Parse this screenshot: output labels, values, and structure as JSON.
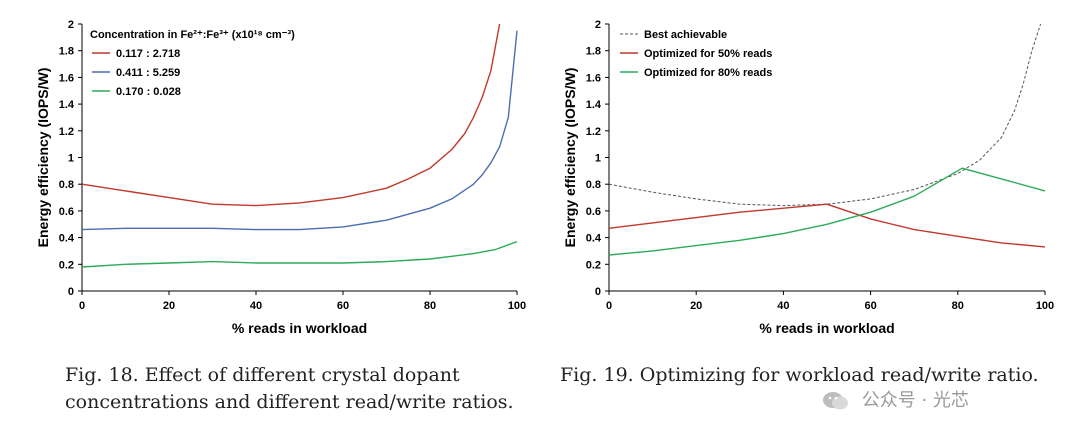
{
  "chart_data": [
    {
      "id": "fig18",
      "type": "line",
      "xlabel": "% reads in workload",
      "ylabel": "Energy efficiency (IOPS/W)",
      "xlim": [
        0,
        100
      ],
      "ylim": [
        0,
        2
      ],
      "xticks": [
        "0",
        "20",
        "40",
        "60",
        "80",
        "100"
      ],
      "yticks": [
        "0",
        "0.2",
        "0.4",
        "0.6",
        "0.8",
        "1",
        "1.2",
        "1.4",
        "1.6",
        "1.8",
        "2"
      ],
      "legend_title": "Concentration in Fe²⁺:Fe³⁺ (x10¹⁸ cm⁻³)",
      "legend_position": "top-left",
      "series": [
        {
          "name": "0.117 : 2.718",
          "color": "#c0392b",
          "x": [
            0,
            10,
            20,
            30,
            40,
            50,
            60,
            70,
            75,
            80,
            85,
            88,
            90,
            92,
            94,
            96
          ],
          "y": [
            0.8,
            0.75,
            0.7,
            0.65,
            0.64,
            0.66,
            0.7,
            0.77,
            0.84,
            0.92,
            1.06,
            1.18,
            1.3,
            1.45,
            1.65,
            2.0
          ]
        },
        {
          "name": "0.411 : 5.259",
          "color": "#4a6fb0",
          "x": [
            0,
            10,
            20,
            25,
            30,
            40,
            50,
            60,
            70,
            80,
            85,
            90,
            92,
            94,
            96,
            98,
            100
          ],
          "y": [
            0.46,
            0.47,
            0.47,
            0.47,
            0.47,
            0.46,
            0.46,
            0.48,
            0.53,
            0.62,
            0.69,
            0.8,
            0.87,
            0.96,
            1.08,
            1.3,
            1.95
          ]
        },
        {
          "name": "0.170 : 0.028",
          "color": "#2eaa5b",
          "x": [
            0,
            10,
            20,
            30,
            40,
            50,
            60,
            70,
            80,
            90,
            95,
            100
          ],
          "y": [
            0.18,
            0.2,
            0.21,
            0.22,
            0.21,
            0.21,
            0.21,
            0.22,
            0.24,
            0.28,
            0.31,
            0.37
          ]
        }
      ]
    },
    {
      "id": "fig19",
      "type": "line",
      "xlabel": "% reads in workload",
      "ylabel": "Energy efficiency (IOPS/W)",
      "xlim": [
        0,
        100
      ],
      "ylim": [
        0,
        2
      ],
      "xticks": [
        "0",
        "20",
        "40",
        "60",
        "80",
        "100"
      ],
      "yticks": [
        "0",
        "0.2",
        "0.4",
        "0.6",
        "0.8",
        "1",
        "1.2",
        "1.4",
        "1.6",
        "1.8",
        "2"
      ],
      "legend_position": "top-left",
      "series": [
        {
          "name": "Best achievable",
          "color": "#555555",
          "dashed": true,
          "x": [
            0,
            10,
            20,
            30,
            40,
            50,
            60,
            70,
            80,
            85,
            90,
            93,
            95,
            97,
            99
          ],
          "y": [
            0.8,
            0.74,
            0.69,
            0.65,
            0.64,
            0.65,
            0.69,
            0.76,
            0.88,
            0.98,
            1.15,
            1.35,
            1.55,
            1.8,
            2.0
          ]
        },
        {
          "name": "Optimized for 50% reads",
          "color": "#c0392b",
          "x": [
            0,
            10,
            20,
            30,
            40,
            50,
            60,
            70,
            80,
            90,
            100
          ],
          "y": [
            0.47,
            0.51,
            0.55,
            0.59,
            0.62,
            0.65,
            0.54,
            0.46,
            0.41,
            0.36,
            0.33
          ]
        },
        {
          "name": "Optimized for 80% reads",
          "color": "#2eaa5b",
          "x": [
            0,
            10,
            20,
            30,
            40,
            50,
            60,
            70,
            81,
            90,
            100
          ],
          "y": [
            0.27,
            0.3,
            0.34,
            0.38,
            0.43,
            0.5,
            0.59,
            0.71,
            0.92,
            0.84,
            0.75
          ]
        }
      ]
    }
  ],
  "captions": {
    "fig18": "Fig. 18.  Effect of different crystal dopant concentrations and different read/write ratios.",
    "fig19": "Fig. 19.  Optimizing for workload read/write ratio."
  },
  "watermark": "公众号 · 光芯"
}
